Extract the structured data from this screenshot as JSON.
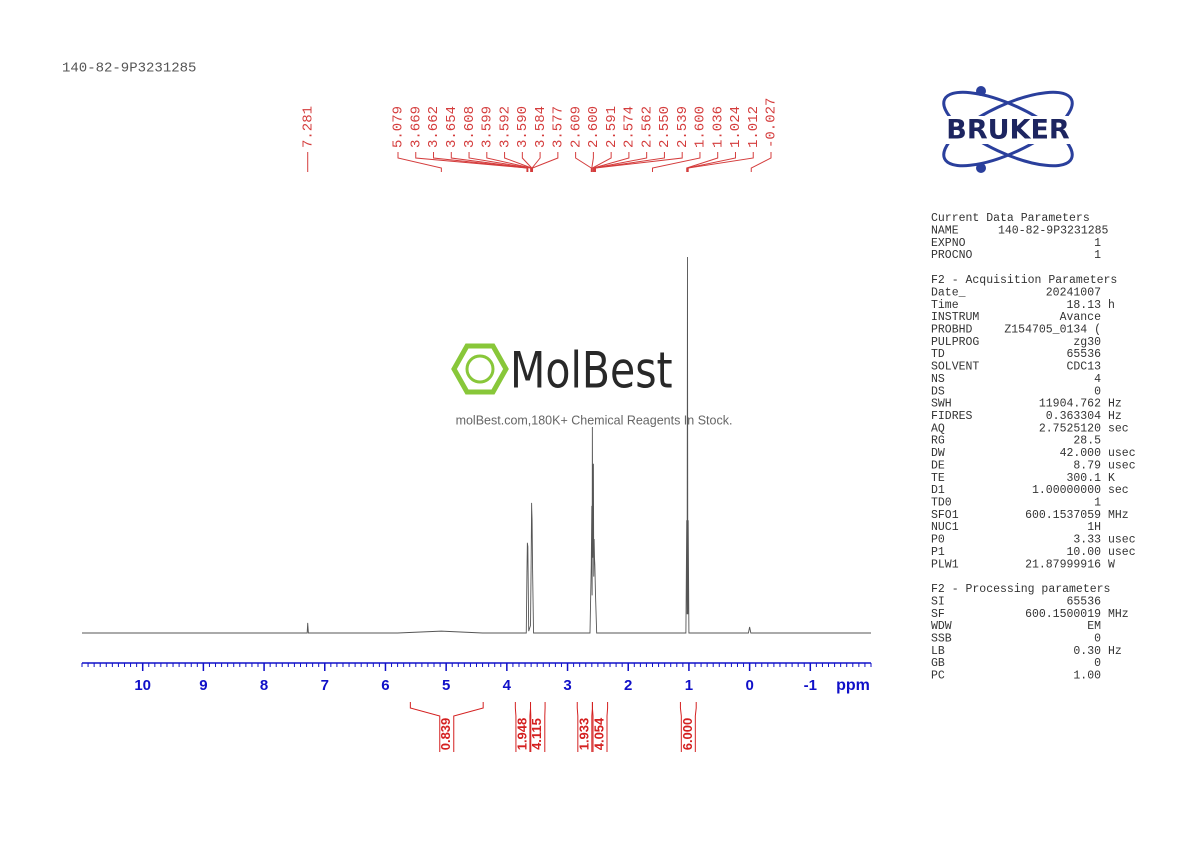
{
  "header": {
    "title": "140-82-9P3231285"
  },
  "watermark": {
    "name": "MolBest",
    "tagline": "molBest.com,180K+ Chemical Reagents In Stock."
  },
  "logo": {
    "text": "BRUKER"
  },
  "chart_data": {
    "type": "nmr",
    "xlabel": "ppm",
    "xlim": [
      11,
      -2
    ],
    "xticks": [
      10,
      9,
      8,
      7,
      6,
      5,
      4,
      3,
      2,
      1,
      0,
      -1
    ],
    "xminor": 0.1,
    "ylim": [
      0,
      100
    ],
    "color": "#555555",
    "x": [
      11,
      7.29,
      7.281,
      7.27,
      5.8,
      5.08,
      4.4,
      3.68,
      3.669,
      3.662,
      3.654,
      3.64,
      3.61,
      3.599,
      3.592,
      3.59,
      3.584,
      3.577,
      3.56,
      2.63,
      2.609,
      2.6,
      2.595,
      2.591,
      2.585,
      2.574,
      2.568,
      2.562,
      2.556,
      2.55,
      2.539,
      2.52,
      1.05,
      1.036,
      1.03,
      1.024,
      1.018,
      1.012,
      1.0,
      0.02,
      0,
      -0.02,
      -2
    ],
    "values": [
      0,
      0,
      2.7,
      0,
      0,
      0.5,
      0,
      0,
      16,
      24,
      23,
      0.5,
      2,
      20,
      34.6,
      33,
      30,
      18,
      0,
      0,
      18,
      33.8,
      10,
      54.8,
      20,
      45,
      15,
      25,
      20,
      18,
      10,
      0,
      0,
      30,
      5,
      100,
      5,
      30,
      0,
      0,
      1.6,
      0,
      0
    ],
    "peaks": {
      "values": [
        7.281,
        5.079,
        3.669,
        3.662,
        3.654,
        3.608,
        3.599,
        3.592,
        3.59,
        3.584,
        3.577,
        2.609,
        2.6,
        2.591,
        2.574,
        2.562,
        2.55,
        2.539,
        1.6,
        1.036,
        1.024,
        1.012,
        -0.027
      ],
      "value_labels": [
        "7.281",
        "5.079",
        "3.669",
        "3.662",
        "3.654",
        "3.608",
        "3.599",
        "3.592",
        "3.590",
        "3.584",
        "3.577",
        "2.609",
        "2.600",
        "2.591",
        "2.574",
        "2.562",
        "2.550",
        "2.539",
        "1.600",
        "1.036",
        "1.024",
        "1.012",
        "-0.027"
      ],
      "color": "#d43c3c"
    },
    "integrals": {
      "ranges": [
        [
          5.59,
          4.39
        ],
        [
          3.86,
          3.61
        ],
        [
          3.61,
          3.37
        ],
        [
          2.84,
          2.59
        ],
        [
          2.59,
          2.34
        ],
        [
          1.14,
          0.88
        ]
      ],
      "values": [
        0.839,
        1.948,
        4.115,
        1.933,
        4.054,
        6
      ],
      "value_labels": [
        "0.839",
        "1.948",
        "4.115",
        "1.933",
        "4.054",
        "6.000"
      ],
      "color": "#d42020"
    },
    "axis_color": "#1010c8"
  },
  "parameters": [
    {
      "title": "Current Data Parameters",
      "rows": [
        [
          "NAME",
          "140-82-9P3231285"
        ],
        [
          "EXPNO",
          "1"
        ],
        [
          "PROCNO",
          "1"
        ]
      ]
    },
    {
      "title": "F2 - Acquisition Parameters",
      "rows": [
        [
          "Date_",
          "20241007"
        ],
        [
          "Time",
          "18.13",
          "h"
        ],
        [
          "INSTRUM",
          "Avance"
        ],
        [
          "PROBHD",
          "Z154705_0134 ("
        ],
        [
          "PULPROG",
          "zg30"
        ],
        [
          "TD",
          "65536"
        ],
        [
          "SOLVENT",
          "CDC13"
        ],
        [
          "NS",
          "4"
        ],
        [
          "DS",
          "0"
        ],
        [
          "SWH",
          "11904.762",
          "Hz"
        ],
        [
          "FIDRES",
          "0.363304",
          "Hz"
        ],
        [
          "AQ",
          "2.7525120",
          "sec"
        ],
        [
          "RG",
          "28.5"
        ],
        [
          "DW",
          "42.000",
          "usec"
        ],
        [
          "DE",
          "8.79",
          "usec"
        ],
        [
          "TE",
          "300.1",
          "K"
        ],
        [
          "D1",
          "1.00000000",
          "sec"
        ],
        [
          "TD0",
          "1"
        ],
        [
          "SFO1",
          "600.1537059",
          "MHz"
        ],
        [
          "NUC1",
          "1H"
        ],
        [
          "P0",
          "3.33",
          "usec"
        ],
        [
          "P1",
          "10.00",
          "usec"
        ],
        [
          "PLW1",
          "21.87999916",
          "W"
        ]
      ]
    },
    {
      "title": "F2 - Processing parameters",
      "rows": [
        [
          "SI",
          "65536"
        ],
        [
          "SF",
          "600.1500019",
          "MHz"
        ],
        [
          "WDW",
          "EM"
        ],
        [
          "SSB",
          "0"
        ],
        [
          "LB",
          "0.30",
          "Hz"
        ],
        [
          "GB",
          "0"
        ],
        [
          "PC",
          "1.00"
        ]
      ]
    }
  ]
}
